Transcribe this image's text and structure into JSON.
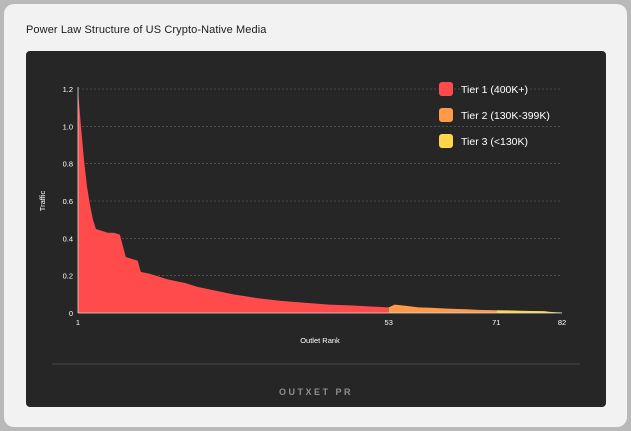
{
  "title": "Power Law Structure of US Crypto-Native Media",
  "brand": "OUTXET PR",
  "colors": {
    "tier1": "#ff4b4b",
    "tier2": "#ff9a4a",
    "tier3": "#ffd54a",
    "panel": "#262626",
    "grid": "#6a6a6a",
    "text": "#ffffff"
  },
  "chart_data": {
    "type": "area",
    "xlabel": "Outlet Rank",
    "ylabel": "Traffic",
    "xlim": [
      1,
      82
    ],
    "ylim": [
      0,
      1.2
    ],
    "x_ticks": [
      1,
      53,
      71,
      82
    ],
    "y_ticks": [
      0,
      0.2,
      0.4,
      0.6,
      0.8,
      1.0,
      1.2
    ],
    "y_tick_labels": [
      "0",
      "0.2",
      "0.4",
      "0.6",
      "0.8",
      "1.0",
      "1.2"
    ],
    "grid": true,
    "legend_position": "top-right",
    "series": [
      {
        "name": "Tier 1 (400K+)",
        "color": "#ff4b4b",
        "points": [
          [
            1,
            1.2
          ],
          [
            1.5,
            1.0
          ],
          [
            2,
            0.82
          ],
          [
            2.5,
            0.68
          ],
          [
            3,
            0.58
          ],
          [
            3.5,
            0.5
          ],
          [
            4,
            0.45
          ],
          [
            5,
            0.44
          ],
          [
            6,
            0.43
          ],
          [
            7,
            0.43
          ],
          [
            8,
            0.42
          ],
          [
            9,
            0.3
          ],
          [
            10,
            0.29
          ],
          [
            11,
            0.28
          ],
          [
            11.5,
            0.22
          ],
          [
            13,
            0.21
          ],
          [
            14,
            0.2
          ],
          [
            16,
            0.18
          ],
          [
            19,
            0.16
          ],
          [
            21,
            0.14
          ],
          [
            24,
            0.12
          ],
          [
            27,
            0.1
          ],
          [
            31,
            0.08
          ],
          [
            35,
            0.065
          ],
          [
            39,
            0.055
          ],
          [
            43,
            0.045
          ],
          [
            47,
            0.04
          ],
          [
            50,
            0.035
          ],
          [
            53,
            0.03
          ]
        ]
      },
      {
        "name": "Tier 2 (130K-399K)",
        "color": "#ff9a4a",
        "points": [
          [
            53,
            0.03
          ],
          [
            54,
            0.045
          ],
          [
            56,
            0.038
          ],
          [
            58,
            0.03
          ],
          [
            60,
            0.028
          ],
          [
            62,
            0.025
          ],
          [
            64,
            0.022
          ],
          [
            66,
            0.02
          ],
          [
            68,
            0.017
          ],
          [
            71,
            0.015
          ]
        ]
      },
      {
        "name": "Tier 3 (<130K)",
        "color": "#ffd54a",
        "points": [
          [
            71,
            0.015
          ],
          [
            73,
            0.014
          ],
          [
            75,
            0.012
          ],
          [
            77,
            0.011
          ],
          [
            79,
            0.01
          ],
          [
            80,
            0.006
          ],
          [
            81,
            0.004
          ],
          [
            82,
            0.003
          ]
        ]
      }
    ]
  }
}
